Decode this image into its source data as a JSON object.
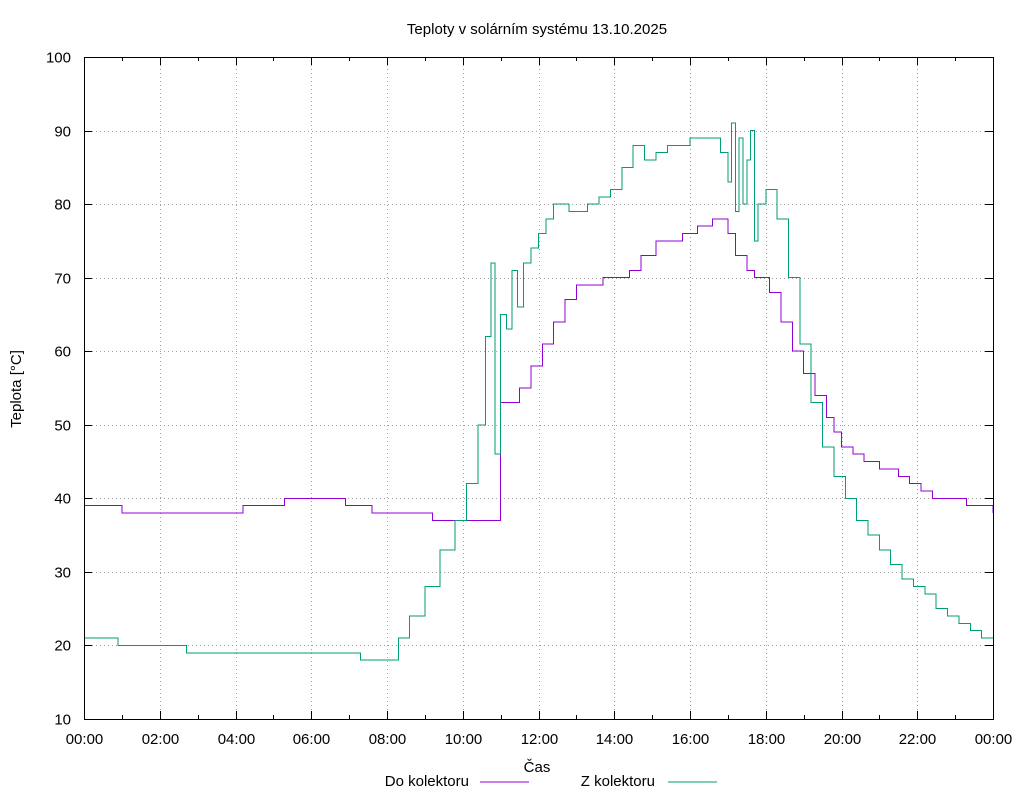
{
  "chart_data": {
    "type": "line",
    "title": "Teploty v solárním systému 13.10.2025",
    "xlabel": "Čas",
    "ylabel": "Teplota [°C]",
    "xlim": [
      0,
      24
    ],
    "ylim": [
      10,
      100
    ],
    "grid": true,
    "legend_position": "bottom-center",
    "x_ticks": [
      "00:00",
      "02:00",
      "04:00",
      "06:00",
      "08:00",
      "10:00",
      "12:00",
      "14:00",
      "16:00",
      "18:00",
      "20:00",
      "22:00",
      "00:00"
    ],
    "y_ticks": [
      "10",
      "20",
      "30",
      "40",
      "50",
      "60",
      "70",
      "80",
      "90",
      "100"
    ],
    "series": [
      {
        "name": "Do kolektoru",
        "color": "#9400d3",
        "x": [
          0,
          1.0,
          1.0,
          4.2,
          4.2,
          5.3,
          5.3,
          6.9,
          6.9,
          7.6,
          7.6,
          9.2,
          9.2,
          10.3,
          10.7,
          10.85,
          11.0,
          11.5,
          11.8,
          12.1,
          12.4,
          12.7,
          13.0,
          13.4,
          13.7,
          14.0,
          14.4,
          14.7,
          15.1,
          15.5,
          15.8,
          16.2,
          16.6,
          16.8,
          17.0,
          17.2,
          17.5,
          17.7,
          17.9,
          18.1,
          18.4,
          18.7,
          19.0,
          19.3,
          19.6,
          19.8,
          20.0,
          20.3,
          20.6,
          21.0,
          21.3,
          21.5,
          21.8,
          22.1,
          22.4,
          23.0,
          23.3,
          23.5,
          24.0
        ],
        "y": [
          39,
          39,
          38,
          38,
          39,
          39,
          40,
          40,
          39,
          39,
          38,
          38,
          37,
          37,
          37,
          37,
          53,
          55,
          58,
          61,
          64,
          67,
          69,
          69,
          70,
          70,
          71,
          73,
          75,
          75,
          76,
          77,
          78,
          78,
          76,
          73,
          71,
          70,
          70,
          68,
          64,
          60,
          57,
          54,
          51,
          49,
          47,
          46,
          45,
          44,
          44,
          43,
          42,
          41,
          40,
          40,
          39,
          39,
          38
        ]
      },
      {
        "name": "Z kolektoru",
        "color": "#009e73",
        "x": [
          0,
          0.9,
          0.9,
          2.7,
          2.7,
          7.3,
          7.3,
          8.0,
          8.3,
          8.6,
          9.0,
          9.4,
          9.8,
          10.1,
          10.4,
          10.6,
          10.75,
          10.85,
          11.0,
          11.15,
          11.3,
          11.45,
          11.6,
          11.8,
          12.0,
          12.2,
          12.4,
          12.6,
          12.8,
          13.0,
          13.3,
          13.6,
          13.9,
          14.2,
          14.5,
          14.8,
          15.1,
          15.4,
          15.7,
          16.0,
          16.5,
          16.8,
          17.0,
          17.1,
          17.2,
          17.3,
          17.4,
          17.5,
          17.6,
          17.7,
          17.8,
          18.0,
          18.3,
          18.6,
          18.9,
          19.2,
          19.5,
          19.8,
          20.1,
          20.4,
          20.7,
          21.0,
          21.3,
          21.6,
          21.9,
          22.2,
          22.5,
          22.8,
          23.1,
          23.4,
          23.7,
          24.0
        ],
        "y": [
          21,
          21,
          20,
          20,
          19,
          19,
          18,
          18,
          21,
          24,
          28,
          33,
          37,
          42,
          50,
          62,
          72,
          46,
          65,
          63,
          71,
          66,
          72,
          74,
          76,
          78,
          80,
          80,
          79,
          79,
          80,
          81,
          82,
          85,
          88,
          86,
          87,
          88,
          88,
          89,
          89,
          87,
          83,
          91,
          79,
          89,
          80,
          86,
          90,
          75,
          80,
          82,
          78,
          70,
          61,
          53,
          47,
          43,
          40,
          37,
          35,
          33,
          31,
          29,
          28,
          27,
          25,
          24,
          23,
          22,
          21,
          21
        ]
      }
    ]
  }
}
